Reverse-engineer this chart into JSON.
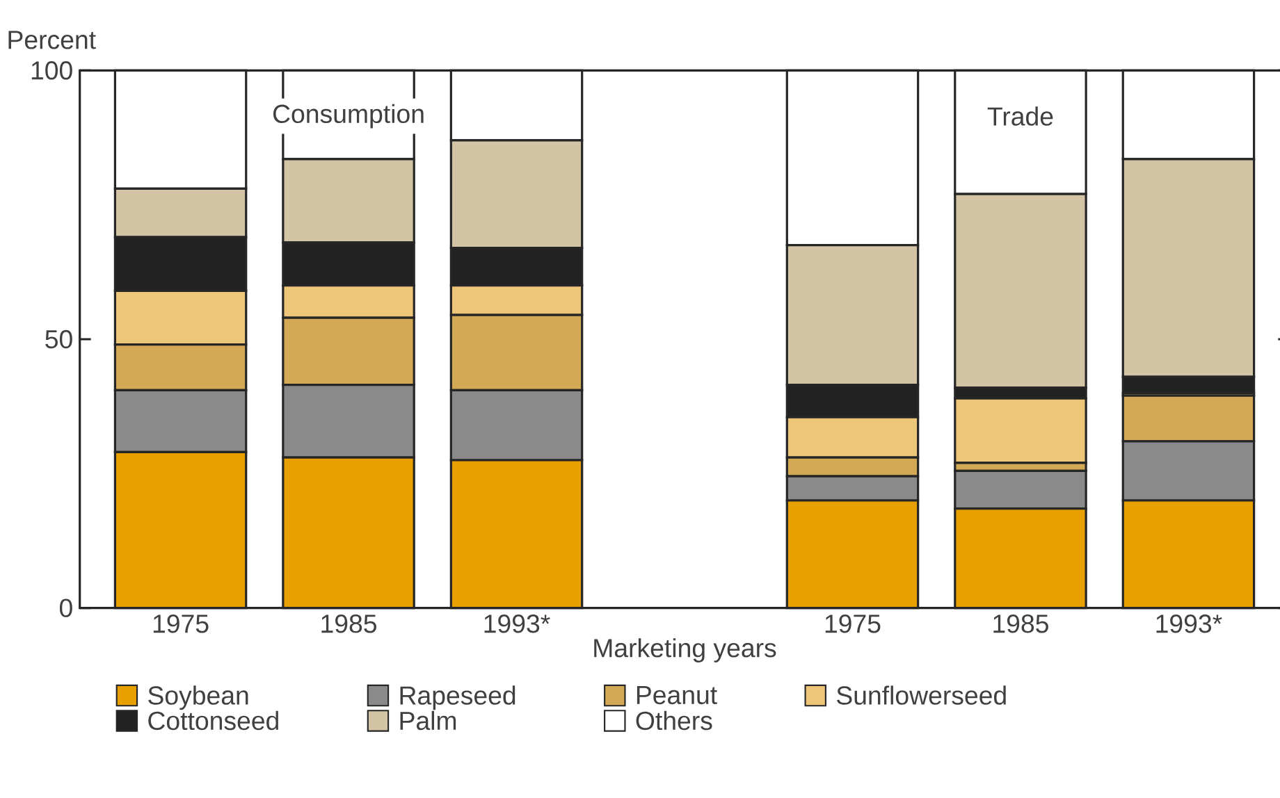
{
  "chart_data": {
    "type": "bar",
    "stacked": true,
    "xlabel": "Marketing years",
    "ylabel": "Percent",
    "categories": [
      "1975",
      "1985",
      "1993*",
      null,
      "1975",
      "1985",
      "1993*"
    ],
    "series": [
      {
        "name": "Soybean",
        "color": "#e8a000",
        "values": [
          29,
          28,
          27.5,
          null,
          20,
          18.5,
          20
        ]
      },
      {
        "name": "Rapeseed",
        "color": "#8a8a8a",
        "values": [
          11.5,
          13.5,
          13,
          null,
          4.5,
          7,
          11
        ]
      },
      {
        "name": "Peanut",
        "color": "#d4a955",
        "values": [
          8.5,
          12.5,
          14,
          null,
          3.5,
          1.5,
          8.5
        ]
      },
      {
        "name": "Sunflowerseed",
        "color": "#eec67a",
        "values": [
          10,
          6,
          5.5,
          null,
          7.5,
          12,
          0.5
        ]
      },
      {
        "name": "Cottonseed",
        "color": "#222222",
        "values": [
          10,
          8,
          7,
          null,
          6,
          2,
          3
        ]
      },
      {
        "name": "Palm",
        "color": "#d2c4a4",
        "values": [
          9,
          15.5,
          20,
          null,
          26,
          36,
          40.5
        ]
      },
      {
        "name": "Others",
        "color": "#ffffff",
        "values": [
          22,
          16.5,
          13,
          null,
          32.5,
          23,
          16.5
        ]
      }
    ],
    "ylim": [
      0,
      100
    ],
    "yticks": [
      0,
      50,
      100
    ],
    "legend": "bottom",
    "annotations": [
      "Consumption",
      "Trade"
    ]
  }
}
